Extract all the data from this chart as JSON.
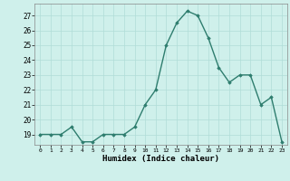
{
  "x": [
    0,
    1,
    2,
    3,
    4,
    5,
    6,
    7,
    8,
    9,
    10,
    11,
    12,
    13,
    14,
    15,
    16,
    17,
    18,
    19,
    20,
    21,
    22,
    23
  ],
  "y": [
    19,
    19,
    19,
    19.5,
    18.5,
    18.5,
    19,
    19,
    19,
    19.5,
    21,
    22,
    25,
    26.5,
    27.3,
    27,
    25.5,
    23.5,
    22.5,
    23,
    23,
    21,
    21.5,
    18.5
  ],
  "xlabel": "Humidex (Indice chaleur)",
  "ylim": [
    18.3,
    27.8
  ],
  "xlim": [
    -0.5,
    23.5
  ],
  "yticks": [
    19,
    20,
    21,
    22,
    23,
    24,
    25,
    26,
    27
  ],
  "xticks": [
    0,
    1,
    2,
    3,
    4,
    5,
    6,
    7,
    8,
    9,
    10,
    11,
    12,
    13,
    14,
    15,
    16,
    17,
    18,
    19,
    20,
    21,
    22,
    23
  ],
  "xtick_labels": [
    "0",
    "1",
    "2",
    "3",
    "4",
    "5",
    "6",
    "7",
    "8",
    "9",
    "10",
    "11",
    "12",
    "13",
    "14",
    "15",
    "16",
    "17",
    "18",
    "19",
    "20",
    "21",
    "22",
    "23"
  ],
  "line_color": "#2e7d6e",
  "marker": "D",
  "marker_size": 1.8,
  "line_width": 1.0,
  "bg_color": "#cff0eb",
  "grid_color": "#b0ddd7",
  "fig_bg": "#cff0eb"
}
